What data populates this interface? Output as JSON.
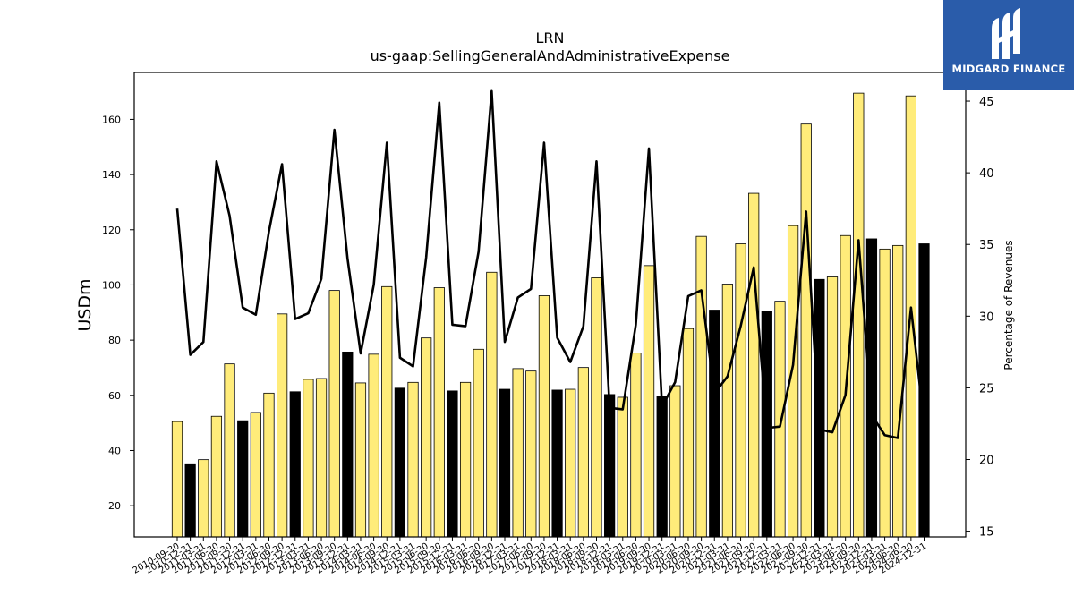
{
  "brand": {
    "name": "MIDGARD FINANCE",
    "background": "#2a5caa"
  },
  "chart_data": {
    "type": "bar",
    "title": "LRN",
    "subtitle": "us-gaap:SellingGeneralAndAdministrativeExpense",
    "ylabel": "USDm",
    "y2label": "Percentage of Revenues",
    "ylim": [
      8.7,
      177
    ],
    "y2lim": [
      14.6,
      47
    ],
    "yticks": [
      20,
      40,
      60,
      80,
      100,
      120,
      140,
      160
    ],
    "y2ticks": [
      15,
      20,
      25,
      30,
      35,
      40,
      45
    ],
    "grid": false,
    "colors": {
      "quarter_bar": "#ffec7a",
      "fy_bar": "#000000",
      "line": "#000000"
    },
    "categories": [
      "2010-09-30",
      "2010-12-31",
      "2011-03-31",
      "2011-06-30",
      "2011-09-30",
      "2011-12-31",
      "2012-03-31",
      "2012-06-30",
      "2012-09-30",
      "2012-12-31",
      "2013-03-31",
      "2013-06-30",
      "2013-09-30",
      "2013-12-31",
      "2014-03-31",
      "2014-06-30",
      "2014-09-30",
      "2014-12-31",
      "2015-03-31",
      "2015-06-30",
      "2015-09-30",
      "2015-12-31",
      "2016-03-31",
      "2016-06-30",
      "2016-09-30",
      "2016-12-31",
      "2017-03-31",
      "2017-06-30",
      "2017-09-30",
      "2017-12-31",
      "2018-03-31",
      "2018-06-30",
      "2018-09-30",
      "2018-12-31",
      "2019-03-31",
      "2019-06-30",
      "2019-09-30",
      "2019-12-31",
      "2020-03-31",
      "2020-06-30",
      "2020-09-30",
      "2020-12-31",
      "2021-03-31",
      "2021-06-30",
      "2021-09-30",
      "2021-12-31",
      "2022-03-31",
      "2022-06-30",
      "2022-09-30",
      "2022-12-31",
      "2023-03-31",
      "2023-06-30",
      "2023-09-30",
      "2023-12-31",
      "2024-03-31",
      "2024-06-30",
      "2024-09-30",
      "2024-12-31"
    ],
    "series": [
      {
        "kind": "bar",
        "axis": "left",
        "values": [
          50.5,
          35.2,
          36.7,
          52.4,
          71.4,
          50.8,
          53.8,
          60.8,
          89.5,
          61.3,
          65.8,
          66.1,
          98.0,
          75.7,
          64.5,
          74.9,
          99.4,
          62.6,
          64.7,
          80.8,
          99.0,
          61.6,
          64.7,
          76.7,
          104.6,
          62.2,
          69.7,
          68.8,
          96.1,
          61.9,
          62.2,
          70.1,
          102.6,
          60.3,
          59.3,
          75.3,
          107.0,
          59.6,
          63.5,
          84.2,
          117.6,
          90.9,
          100.3,
          114.9,
          133.2,
          90.6,
          94.1,
          121.5,
          158.3,
          102.0,
          102.9,
          117.9,
          169.5,
          116.7,
          113.0,
          114.3,
          168.5,
          114.9
        ],
        "fy_flags": [
          0,
          1,
          0,
          0,
          0,
          1,
          0,
          0,
          0,
          1,
          0,
          0,
          0,
          1,
          0,
          0,
          0,
          1,
          0,
          0,
          0,
          1,
          0,
          0,
          0,
          1,
          0,
          0,
          0,
          1,
          0,
          0,
          0,
          1,
          0,
          0,
          0,
          1,
          0,
          0,
          0,
          1,
          0,
          0,
          0,
          1,
          0,
          0,
          0,
          1,
          0,
          0,
          0,
          1,
          0,
          0,
          0,
          1
        ]
      },
      {
        "kind": "line",
        "axis": "right",
        "values": [
          37.5,
          27.3,
          28.2,
          40.8,
          37.0,
          30.6,
          30.1,
          35.9,
          40.6,
          29.8,
          30.2,
          32.6,
          43.0,
          34.0,
          27.4,
          32.2,
          42.1,
          27.1,
          26.5,
          34.1,
          44.9,
          29.4,
          29.3,
          34.5,
          45.7,
          28.2,
          31.3,
          31.9,
          42.1,
          28.5,
          26.8,
          29.3,
          40.8,
          23.6,
          23.5,
          29.4,
          41.7,
          23.7,
          25.4,
          31.4,
          31.8,
          24.6,
          25.8,
          29.3,
          33.4,
          22.2,
          22.3,
          26.6,
          37.3,
          22.1,
          21.9,
          24.5,
          35.3,
          23.1,
          21.7,
          21.5,
          30.6,
          22.5
        ]
      }
    ]
  }
}
